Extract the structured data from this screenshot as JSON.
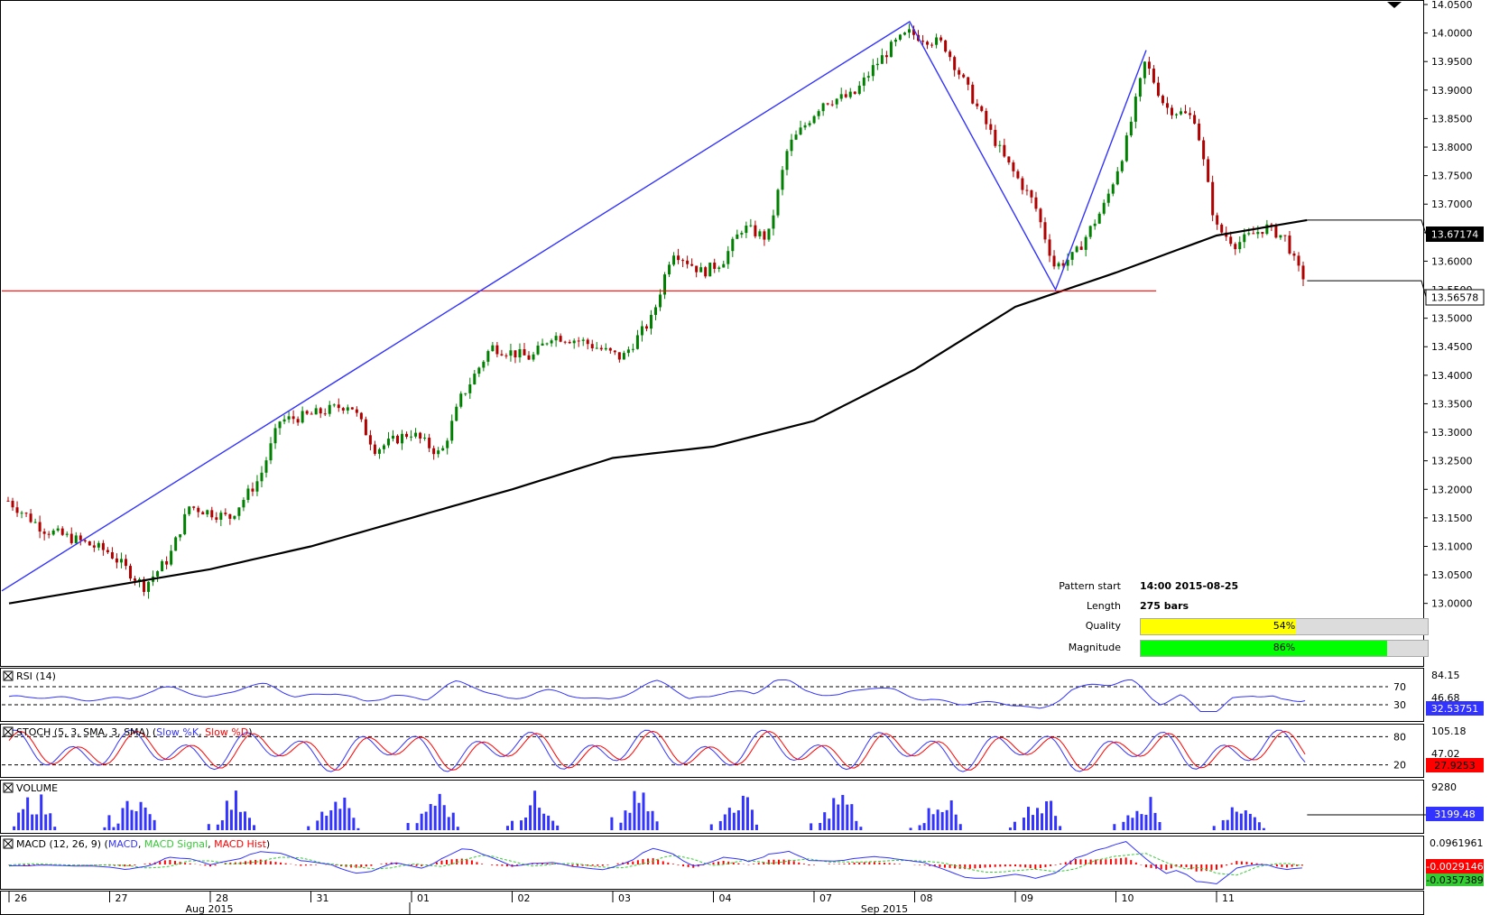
{
  "chart_data": {
    "type": "candlestick",
    "price_axis": {
      "ylim": [
        12.99,
        14.05
      ],
      "ticks": [
        "14.0500",
        "14.0000",
        "13.9500",
        "13.9000",
        "13.8500",
        "13.8000",
        "13.7500",
        "13.7000",
        "13.6500",
        "13.6000",
        "13.5500",
        "13.5000",
        "13.4500",
        "13.4000",
        "13.3500",
        "13.3000",
        "13.2500",
        "13.2000",
        "13.1500",
        "13.1000",
        "13.0500",
        "13.0000"
      ]
    },
    "current_price_label": "13.56578",
    "ma_price_label": "13.67174",
    "support_level": 13.548,
    "pattern_points": [
      {
        "date": "2015-08-25 14:00",
        "price": 13.022
      },
      {
        "date": "2015-09-07",
        "price": 14.02
      },
      {
        "date": "2015-09-08",
        "price": 13.55
      },
      {
        "date": "2015-09-09",
        "price": 13.97
      }
    ],
    "close_path": [
      {
        "day": 0,
        "price": 13.18
      },
      {
        "day": 0.35,
        "price": 13.13
      },
      {
        "day": 0.7,
        "price": 13.11
      },
      {
        "day": 1.0,
        "price": 13.09
      },
      {
        "day": 1.35,
        "price": 13.03
      },
      {
        "day": 1.6,
        "price": 13.08
      },
      {
        "day": 1.8,
        "price": 13.17
      },
      {
        "day": 2.2,
        "price": 13.15
      },
      {
        "day": 2.5,
        "price": 13.22
      },
      {
        "day": 2.7,
        "price": 13.32
      },
      {
        "day": 3.0,
        "price": 13.33
      },
      {
        "day": 3.4,
        "price": 13.35
      },
      {
        "day": 3.65,
        "price": 13.27
      },
      {
        "day": 4.0,
        "price": 13.3
      },
      {
        "day": 4.3,
        "price": 13.26
      },
      {
        "day": 4.5,
        "price": 13.36
      },
      {
        "day": 4.8,
        "price": 13.45
      },
      {
        "day": 5.2,
        "price": 13.43
      },
      {
        "day": 5.4,
        "price": 13.47
      },
      {
        "day": 5.7,
        "price": 13.46
      },
      {
        "day": 6.1,
        "price": 13.43
      },
      {
        "day": 6.4,
        "price": 13.5
      },
      {
        "day": 6.6,
        "price": 13.62
      },
      {
        "day": 6.9,
        "price": 13.58
      },
      {
        "day": 7.1,
        "price": 13.6
      },
      {
        "day": 7.3,
        "price": 13.66
      },
      {
        "day": 7.55,
        "price": 13.64
      },
      {
        "day": 7.75,
        "price": 13.8
      },
      {
        "day": 8.1,
        "price": 13.88
      },
      {
        "day": 8.4,
        "price": 13.89
      },
      {
        "day": 8.6,
        "price": 13.94
      },
      {
        "day": 8.8,
        "price": 13.98
      },
      {
        "day": 8.95,
        "price": 14.0
      },
      {
        "day": 9.3,
        "price": 13.98
      },
      {
        "day": 9.6,
        "price": 13.88
      },
      {
        "day": 9.9,
        "price": 13.78
      },
      {
        "day": 10.2,
        "price": 13.7
      },
      {
        "day": 10.4,
        "price": 13.59
      },
      {
        "day": 10.6,
        "price": 13.61
      },
      {
        "day": 10.9,
        "price": 13.7
      },
      {
        "day": 11.1,
        "price": 13.8
      },
      {
        "day": 11.3,
        "price": 13.95
      },
      {
        "day": 11.5,
        "price": 13.87
      },
      {
        "day": 11.8,
        "price": 13.85
      },
      {
        "day": 12.0,
        "price": 13.66
      },
      {
        "day": 12.2,
        "price": 13.63
      },
      {
        "day": 12.5,
        "price": 13.66
      },
      {
        "day": 12.7,
        "price": 13.64
      },
      {
        "day": 12.8,
        "price": 13.59
      },
      {
        "day": 12.9,
        "price": 13.566
      }
    ],
    "ma_path": [
      {
        "day": 0,
        "price": 13.0
      },
      {
        "day": 1,
        "price": 13.03
      },
      {
        "day": 2,
        "price": 13.06
      },
      {
        "day": 3,
        "price": 13.1
      },
      {
        "day": 4,
        "price": 13.15
      },
      {
        "day": 5,
        "price": 13.2
      },
      {
        "day": 6,
        "price": 13.255
      },
      {
        "day": 7,
        "price": 13.275
      },
      {
        "day": 8,
        "price": 13.32
      },
      {
        "day": 9,
        "price": 13.41
      },
      {
        "day": 10,
        "price": 13.52
      },
      {
        "day": 11,
        "price": 13.58
      },
      {
        "day": 12,
        "price": 13.645
      },
      {
        "day": 12.9,
        "price": 13.672
      }
    ],
    "date_axis": {
      "day_labels": [
        "26",
        "27",
        "28",
        "31",
        "01",
        "02",
        "03",
        "04",
        "07",
        "08",
        "09",
        "10",
        "11"
      ],
      "month_labels": [
        "Aug 2015",
        "Sep 2015"
      ]
    },
    "indicators": {
      "rsi": {
        "title_prefix": "RSI (14)",
        "levels": [
          "70",
          "30"
        ],
        "axis_labels": [
          "84.15",
          "46.68"
        ],
        "value_label": "32.53751"
      },
      "stoch": {
        "title_prefix": "STOCH (5, 3, SMA, 3, SMA) (",
        "slow_k": "Slow %K",
        "slow_d": "Slow %D",
        "title_suffix": ")",
        "levels": [
          "80",
          "20"
        ],
        "axis_labels": [
          "105.18",
          "47.02"
        ],
        "value_label": "27.9253"
      },
      "volume": {
        "title": "VOLUME",
        "axis_labels": [
          "9280"
        ],
        "value_label": "3199.48"
      },
      "macd": {
        "title_prefix": "MACD (12, 26, 9) (",
        "line": "MACD",
        "signal": "MACD Signal",
        "hist": "MACD Hist",
        "title_suffix": ")",
        "axis_labels": [
          "0.0961961"
        ],
        "value_labels": [
          "-0.0029146",
          "-0.0357389"
        ]
      }
    }
  },
  "pattern_info": {
    "start_label": "Pattern start",
    "start_value": "14:00 2015-08-25",
    "length_label": "Length",
    "length_value": "275 bars",
    "quality_label": "Quality",
    "quality_value": "54%",
    "quality_fraction": 0.54,
    "magnitude_label": "Magnitude",
    "magnitude_value": "86%",
    "magnitude_fraction": 0.86
  },
  "colors": {
    "up_candle": "#008000",
    "down_candle": "#b00000",
    "pattern_line": "#3333ff",
    "support_line": "#ff0000",
    "ma_line": "#000000",
    "rsi": "#3333ff",
    "stoch_k": "#3333ff",
    "stoch_d": "#ff0000",
    "macd": "#3333ff",
    "macd_signal": "#33cc33",
    "macd_hist": "#ff0000",
    "volume": "#3333ff",
    "quality_bar": "#ffff00",
    "magnitude_bar": "#00ff00"
  }
}
